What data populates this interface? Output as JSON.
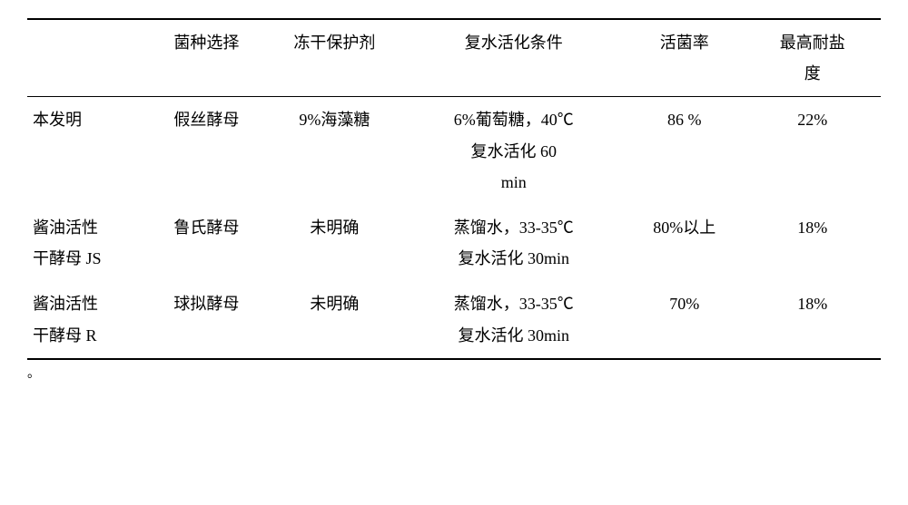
{
  "table": {
    "columns": [
      "",
      "菌种选择",
      "冻干保护剂",
      "复水活化条件",
      "活菌率",
      "最高耐盐度"
    ],
    "col_widths_pct": [
      14,
      14,
      16,
      26,
      14,
      16
    ],
    "header_two_line_col5": [
      "最高耐盐",
      "度"
    ],
    "rows": [
      {
        "label": "本发明",
        "strain": "假丝酵母",
        "protectant": "9%海藻糖",
        "rehydration_lines": [
          "6%葡萄糖，40℃",
          "复水活化 60",
          "min"
        ],
        "viability": "86 %",
        "salt_tolerance": "22%"
      },
      {
        "label_lines": [
          "酱油活性",
          "干酵母 JS"
        ],
        "strain": "鲁氏酵母",
        "protectant": "未明确",
        "rehydration_lines": [
          "蒸馏水，33-35℃",
          "复水活化 30min"
        ],
        "viability": "80%以上",
        "salt_tolerance": "18%"
      },
      {
        "label_lines": [
          "酱油活性",
          "干酵母 R"
        ],
        "strain": "球拟酵母",
        "protectant": "未明确",
        "rehydration_lines": [
          "蒸馏水，33-35℃",
          "复水活化 30min"
        ],
        "viability": "70%",
        "salt_tolerance": "18%"
      }
    ],
    "font_size_pt": 18,
    "line_height": 1.9,
    "text_color": "#000000",
    "background_color": "#ffffff",
    "border_color": "#000000"
  },
  "footnote": "。"
}
